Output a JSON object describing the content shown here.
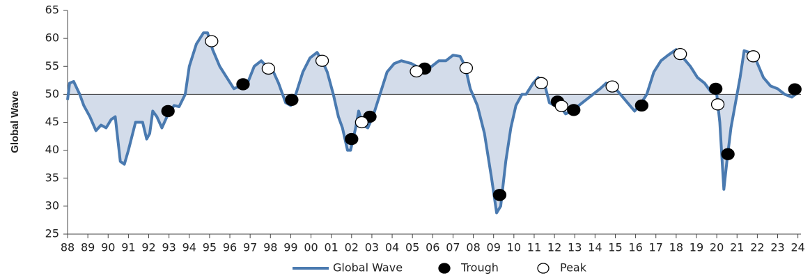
{
  "chart_data": {
    "type": "line",
    "ylabel": "Global Wave",
    "xlim": [
      1988,
      2024.15
    ],
    "ylim": [
      25,
      65
    ],
    "yticks": [
      25,
      30,
      35,
      40,
      45,
      50,
      55,
      60,
      65
    ],
    "xticks": [
      {
        "value": 1988,
        "label": "88"
      },
      {
        "value": 1989,
        "label": "89"
      },
      {
        "value": 1990,
        "label": "90"
      },
      {
        "value": 1991,
        "label": "91"
      },
      {
        "value": 1992,
        "label": "92"
      },
      {
        "value": 1993,
        "label": "93"
      },
      {
        "value": 1994,
        "label": "94"
      },
      {
        "value": 1995,
        "label": "95"
      },
      {
        "value": 1996,
        "label": "96"
      },
      {
        "value": 1997,
        "label": "97"
      },
      {
        "value": 1998,
        "label": "98"
      },
      {
        "value": 1999,
        "label": "99"
      },
      {
        "value": 2000,
        "label": "00"
      },
      {
        "value": 2001,
        "label": "01"
      },
      {
        "value": 2002,
        "label": "02"
      },
      {
        "value": 2003,
        "label": "03"
      },
      {
        "value": 2004,
        "label": "04"
      },
      {
        "value": 2005,
        "label": "05"
      },
      {
        "value": 2006,
        "label": "06"
      },
      {
        "value": 2007,
        "label": "07"
      },
      {
        "value": 2008,
        "label": "08"
      },
      {
        "value": 2009,
        "label": "09"
      },
      {
        "value": 2010,
        "label": "10"
      },
      {
        "value": 2011,
        "label": "11"
      },
      {
        "value": 2012,
        "label": "12"
      },
      {
        "value": 2013,
        "label": "13"
      },
      {
        "value": 2014,
        "label": "14"
      },
      {
        "value": 2015,
        "label": "15"
      },
      {
        "value": 2016,
        "label": "16"
      },
      {
        "value": 2017,
        "label": "17"
      },
      {
        "value": 2018,
        "label": "18"
      },
      {
        "value": 2019,
        "label": "19"
      },
      {
        "value": 2020,
        "label": "20"
      },
      {
        "value": 2021,
        "label": "21"
      },
      {
        "value": 2022,
        "label": "22"
      },
      {
        "value": 2023,
        "label": "23"
      },
      {
        "value": 2024,
        "label": "24"
      }
    ],
    "baseline": 50,
    "fill_color": "#d3dcea",
    "series": [
      {
        "name": "Global Wave",
        "kind": "line",
        "color": "#4a7ab0",
        "x": [
          1988.0,
          1988.1,
          1988.3,
          1988.6,
          1988.8,
          1989.1,
          1989.4,
          1989.65,
          1989.9,
          1990.15,
          1990.35,
          1990.6,
          1990.8,
          1991.0,
          1991.35,
          1991.7,
          1991.9,
          1992.05,
          1992.2,
          1992.4,
          1992.65,
          1992.9,
          1993.25,
          1993.5,
          1993.8,
          1994.0,
          1994.35,
          1994.7,
          1994.9,
          1995.15,
          1995.5,
          1995.85,
          1996.2,
          1996.5,
          1996.85,
          1997.2,
          1997.55,
          1997.8,
          1998.15,
          1998.4,
          1998.75,
          1999.0,
          1999.25,
          1999.6,
          1999.95,
          2000.3,
          2000.55,
          2000.8,
          2001.1,
          2001.35,
          2001.55,
          2001.8,
          2001.95,
          2002.2,
          2002.35,
          2002.55,
          2002.8,
          2003.05,
          2003.4,
          2003.75,
          2004.1,
          2004.45,
          2004.95,
          2005.45,
          2005.7,
          2005.95,
          2006.3,
          2006.65,
          2007.0,
          2007.35,
          2007.6,
          2007.85,
          2008.2,
          2008.55,
          2008.9,
          2009.15,
          2009.35,
          2009.6,
          2009.85,
          2010.1,
          2010.4,
          2010.6,
          2010.95,
          2011.2,
          2011.5,
          2011.75,
          2012.0,
          2012.35,
          2012.55,
          2012.85,
          2013.2,
          2013.55,
          2013.9,
          2014.25,
          2014.55,
          2014.9,
          2015.25,
          2015.6,
          2015.95,
          2016.2,
          2016.55,
          2016.9,
          2017.25,
          2017.6,
          2018.0,
          2018.35,
          2018.7,
          2019.05,
          2019.4,
          2019.7,
          2020.0,
          2020.15,
          2020.35,
          2020.5,
          2020.7,
          2020.9,
          2021.15,
          2021.35,
          2021.6,
          2021.95,
          2022.3,
          2022.65,
          2023.0,
          2023.35,
          2023.7,
          2024.05
        ],
        "values": [
          49,
          52,
          52.3,
          50,
          48,
          46,
          43.5,
          44.5,
          44,
          45.5,
          46,
          38,
          37.5,
          40,
          45,
          45,
          42,
          43,
          47,
          46,
          44,
          46,
          48,
          47.8,
          50,
          55,
          59,
          61,
          61,
          58,
          55,
          53,
          51,
          51.5,
          51.8,
          55,
          56,
          55,
          54,
          52,
          48.5,
          48,
          50,
          54,
          56.5,
          57.5,
          56,
          54,
          50,
          46,
          44,
          40,
          40,
          44,
          47,
          44.5,
          44,
          46,
          50,
          54,
          55.5,
          56,
          55.5,
          54.5,
          54.8,
          55,
          56,
          56,
          57,
          56.8,
          55,
          51,
          48,
          43,
          35,
          28.8,
          30,
          38,
          44,
          48,
          50,
          50,
          52,
          53,
          52,
          48.5,
          48,
          47.5,
          46.5,
          47,
          48,
          49,
          50,
          51,
          52,
          51.5,
          50,
          48.5,
          47,
          48,
          50,
          54,
          56,
          57,
          58,
          56.5,
          55,
          53,
          52,
          50.5,
          50,
          45,
          33,
          38,
          44,
          48,
          53,
          57.8,
          57.5,
          56,
          53,
          51.5,
          51,
          50,
          49.5,
          50.5
        ]
      },
      {
        "name": "Trough",
        "kind": "scatter",
        "color": "#000000",
        "x": [
          1992.95,
          1996.65,
          1999.05,
          2002.0,
          2002.9,
          2005.6,
          2009.3,
          2012.15,
          2012.95,
          2016.3,
          2019.95,
          2020.55,
          2023.85
        ],
        "values": [
          47,
          51.8,
          49,
          42,
          46,
          54.6,
          32,
          48.7,
          47.2,
          48,
          51,
          39.3,
          50.9
        ]
      },
      {
        "name": "Peak",
        "kind": "scatter",
        "color": "#ffffff",
        "x": [
          1995.1,
          1997.9,
          2000.55,
          2002.5,
          2005.2,
          2007.65,
          2011.35,
          2012.35,
          2014.85,
          2018.2,
          2020.05,
          2021.8
        ],
        "values": [
          59.5,
          54.6,
          56,
          45,
          54.1,
          54.7,
          52,
          47.9,
          51.4,
          57.2,
          48.2,
          56.8
        ]
      }
    ]
  }
}
